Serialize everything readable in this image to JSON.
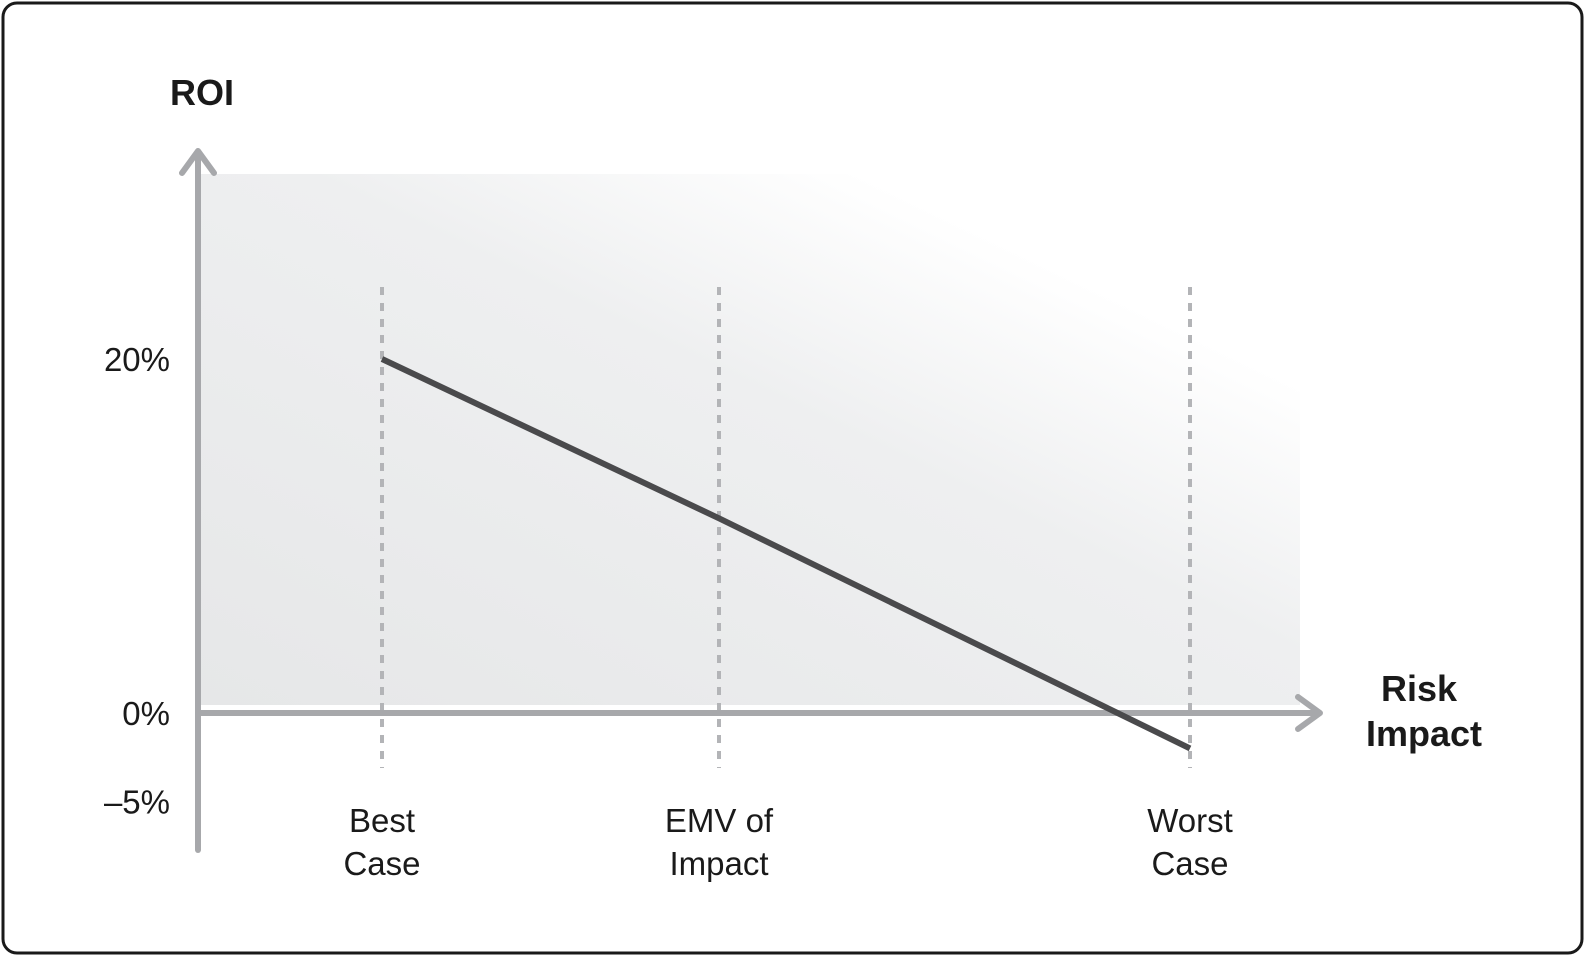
{
  "chart_data": {
    "type": "line",
    "title": "",
    "ylabel": "ROI",
    "xlabel": [
      "Risk",
      "Impact"
    ],
    "y_ticks": [
      {
        "value": 20,
        "label": "20%"
      },
      {
        "value": 0,
        "label": "0%"
      },
      {
        "value": -5,
        "label": "–5%"
      }
    ],
    "categories": [
      {
        "key": "best",
        "lines": [
          "Best",
          "Case"
        ]
      },
      {
        "key": "emv",
        "lines": [
          "EMV of",
          "Impact"
        ]
      },
      {
        "key": "worst",
        "lines": [
          "Worst",
          "Case"
        ]
      }
    ],
    "series": [
      {
        "points": [
          {
            "category": "best",
            "y": 20
          },
          {
            "category": "emv",
            "y": 11
          },
          {
            "category": "worst",
            "y": -2
          }
        ]
      }
    ],
    "ylim": [
      -8,
      30
    ],
    "grid": false,
    "colors": {
      "line": "#4a4a4c",
      "axis": "#a7a8ab",
      "guide": "#b3b4b7",
      "shade": "#e6e7e8",
      "text": "#1a1a1a",
      "frame": "#1a1a1a"
    }
  }
}
